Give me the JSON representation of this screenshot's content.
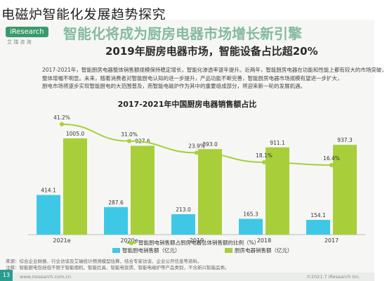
{
  "page": {
    "title": "电磁炉智能化发展趋势探究"
  },
  "slide": {
    "brand": "iResearch",
    "brand_sub": "艾 瑞 咨 询",
    "headline": "智能化将成为厨房电器市场增长新引擎",
    "subheadline": "2019年厨房电器市场，智能设备占比超20%",
    "paragraph": [
      "2017-2021年，智能厨房电器整体销售额规模保持稳定增长，智能化渗透率逐年提升。近两年，智能厨房电器在功能和性能上都有较大的市场突破，",
      "整体增幅不明显。未来，随着消费者对智能厨电认知的进一步提升，产品功能不断完善，智能厨房电器市场规模有望进一步扩大，",
      "厨电市场将逐步实现智能厨电的大范围普及，而智能电磁炉作为其中的重要组成部分，将迎来新一轮的发展机遇。"
    ],
    "footer_left": "www.iresearch.com.cn",
    "footer_right": "©2021.7 iResearch Inc.",
    "page_number": "13"
  },
  "chart_data": {
    "type": "bar",
    "title": "2017-2021年中国厨房电器销售额占比",
    "categories": [
      "2021e",
      "2020e",
      "2019",
      "2018",
      "2017"
    ],
    "series": [
      {
        "name": "智能厨电销售额（亿元）",
        "type": "bar",
        "color": "#3ec8e6",
        "values": [
          414.1,
          287.6,
          213.0,
          165.3,
          154.1
        ],
        "labels": [
          "414.1",
          "287.6",
          "213.0",
          "165.3",
          "154.1"
        ]
      },
      {
        "name": "厨房电器销售额（亿元）",
        "type": "bar",
        "color": "#a8cf3a",
        "values": [
          1005.0,
          927.6,
          893.0,
          911.1,
          937.3
        ],
        "labels": [
          "1005.0",
          "927.6",
          "893.0",
          "911.1",
          "937.3"
        ]
      },
      {
        "name": "智能厨电销售额占厨房电器总体销售额的比例（%）",
        "type": "line",
        "color": "#a8cf3a",
        "values": [
          41.2,
          31.0,
          23.9,
          18.1,
          16.4
        ],
        "labels": [
          "41.2%",
          "31.0%",
          "23.9%",
          "18.1%",
          "16.4%"
        ]
      }
    ],
    "legend": "bottom",
    "source": [
      "来源：综合企业财报、行业访谈及艾瑞统计预测模型估算，结合专家访谈、企业公开信息等资料。",
      "注释：智能厨电包括但不限于智能烟机、智能灶具、智能电饭煲、智能电磁炉等产品类别，不含新兴智能品类。"
    ]
  }
}
